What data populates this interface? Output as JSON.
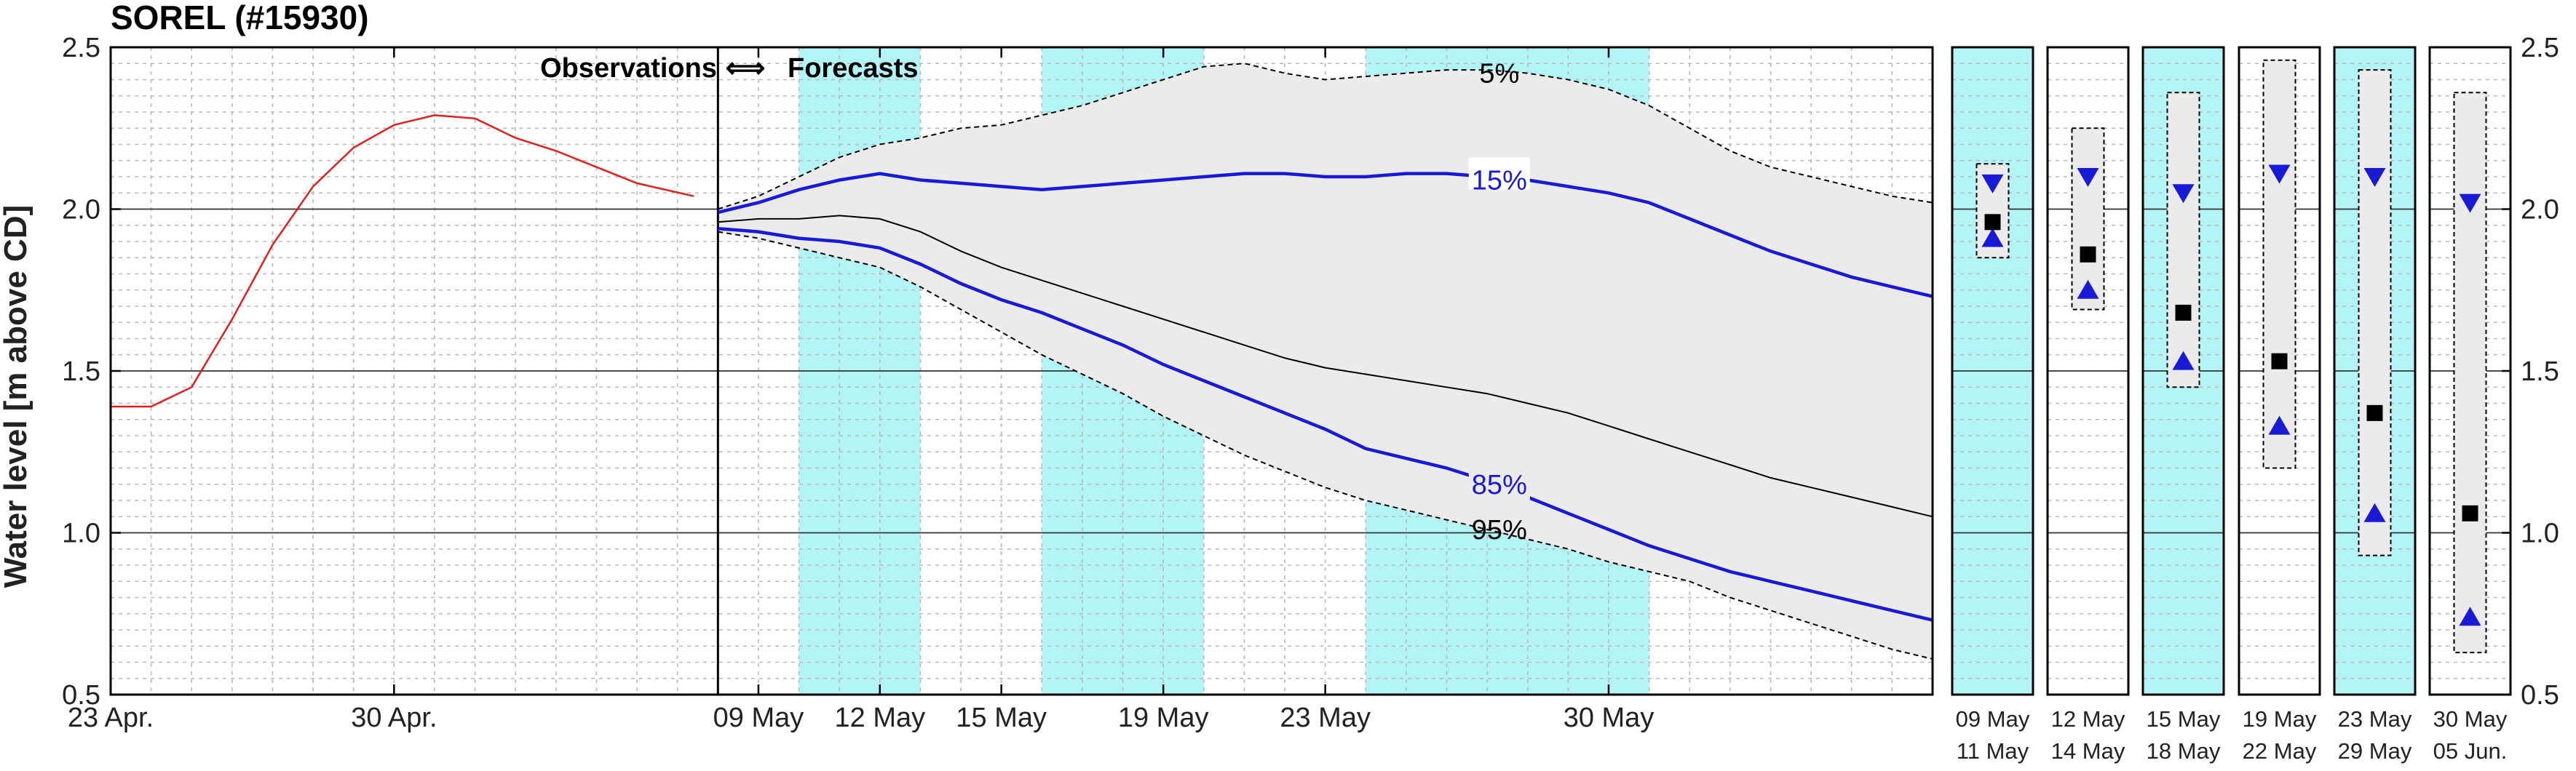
{
  "title": "SOREL (#15930)",
  "colors": {
    "observed": "#e0201b",
    "median": "#000000",
    "percentile": "#1a1ad6",
    "band_fill": "#ebebeb",
    "highlight": "#b3f5f7"
  },
  "chart_data": {
    "type": "line",
    "title": "SOREL (#15930)",
    "ylabel": "Water level [m above CD]",
    "ylim": [
      0.5,
      2.5
    ],
    "yticks": [
      "0.5",
      "1.0",
      "1.5",
      "2.0",
      "2.5"
    ],
    "grid": true,
    "annotation": {
      "observations": "Observations",
      "arrow": "⟺",
      "forecasts": "Forecasts"
    },
    "xticks": [
      {
        "x": 0,
        "label": "23 Apr."
      },
      {
        "x": 7,
        "label": "30 Apr."
      },
      {
        "x": 16,
        "label": "09 May"
      },
      {
        "x": 19,
        "label": "12 May"
      },
      {
        "x": 22,
        "label": "15 May"
      },
      {
        "x": 26,
        "label": "19 May"
      },
      {
        "x": 30,
        "label": "23 May"
      },
      {
        "x": 37,
        "label": "30 May"
      }
    ],
    "highlight_periods": [
      [
        17,
        20
      ],
      [
        23,
        27
      ],
      [
        31,
        38
      ]
    ],
    "observed": {
      "name": "Observations",
      "x": [
        0,
        1,
        2,
        3,
        4,
        5,
        6,
        7,
        8,
        9,
        10,
        11,
        12,
        13,
        14.4
      ],
      "y": [
        1.39,
        1.39,
        1.45,
        1.66,
        1.89,
        2.07,
        2.19,
        2.26,
        2.29,
        2.28,
        2.22,
        2.18,
        2.13,
        2.08,
        2.04
      ]
    },
    "forecast_x": [
      15,
      16,
      17,
      18,
      19,
      20,
      21,
      22,
      23,
      24,
      25,
      26,
      27,
      28,
      29,
      30,
      31,
      32,
      33,
      34,
      35,
      36,
      37,
      38,
      39,
      40,
      41,
      42,
      43,
      44,
      45
    ],
    "series": [
      {
        "name": "5%",
        "values": [
          2.0,
          2.04,
          2.1,
          2.16,
          2.2,
          2.22,
          2.25,
          2.26,
          2.29,
          2.32,
          2.36,
          2.4,
          2.44,
          2.45,
          2.42,
          2.4,
          2.41,
          2.42,
          2.43,
          2.43,
          2.42,
          2.4,
          2.37,
          2.32,
          2.25,
          2.18,
          2.13,
          2.1,
          2.07,
          2.04,
          2.02
        ]
      },
      {
        "name": "15%",
        "values": [
          1.99,
          2.02,
          2.06,
          2.09,
          2.11,
          2.09,
          2.08,
          2.07,
          2.06,
          2.07,
          2.08,
          2.09,
          2.1,
          2.11,
          2.11,
          2.1,
          2.1,
          2.11,
          2.11,
          2.1,
          2.09,
          2.07,
          2.05,
          2.02,
          1.97,
          1.92,
          1.87,
          1.83,
          1.79,
          1.76,
          1.73
        ]
      },
      {
        "name": "median",
        "values": [
          1.96,
          1.97,
          1.97,
          1.98,
          1.97,
          1.93,
          1.87,
          1.82,
          1.78,
          1.74,
          1.7,
          1.66,
          1.62,
          1.58,
          1.54,
          1.51,
          1.49,
          1.47,
          1.45,
          1.43,
          1.4,
          1.37,
          1.33,
          1.29,
          1.25,
          1.21,
          1.17,
          1.14,
          1.11,
          1.08,
          1.05
        ]
      },
      {
        "name": "85%",
        "values": [
          1.94,
          1.93,
          1.91,
          1.9,
          1.88,
          1.83,
          1.77,
          1.72,
          1.68,
          1.63,
          1.58,
          1.52,
          1.47,
          1.42,
          1.37,
          1.32,
          1.26,
          1.23,
          1.2,
          1.16,
          1.11,
          1.06,
          1.01,
          0.96,
          0.92,
          0.88,
          0.85,
          0.82,
          0.79,
          0.76,
          0.73
        ]
      },
      {
        "name": "95%",
        "values": [
          1.93,
          1.91,
          1.88,
          1.85,
          1.82,
          1.76,
          1.69,
          1.62,
          1.55,
          1.49,
          1.43,
          1.36,
          1.3,
          1.24,
          1.19,
          1.14,
          1.1,
          1.07,
          1.04,
          1.01,
          0.98,
          0.95,
          0.91,
          0.88,
          0.85,
          0.8,
          0.76,
          0.72,
          0.68,
          0.64,
          0.61
        ]
      }
    ],
    "percentile_labels": {
      "p5": "5%",
      "p15": "15%",
      "p85": "85%",
      "p95": "95%"
    },
    "periods": [
      {
        "label1": "09 May",
        "label2": "11 May",
        "highlight": true,
        "upper": 2.14,
        "lower": 1.85,
        "up_tri": 2.08,
        "median": 1.96,
        "down_tri": 1.91
      },
      {
        "label1": "12 May",
        "label2": "14 May",
        "highlight": false,
        "upper": 2.25,
        "lower": 1.69,
        "up_tri": 2.1,
        "median": 1.86,
        "down_tri": 1.75
      },
      {
        "label1": "15 May",
        "label2": "18 May",
        "highlight": true,
        "upper": 2.36,
        "lower": 1.45,
        "up_tri": 2.05,
        "median": 1.68,
        "down_tri": 1.53
      },
      {
        "label1": "19 May",
        "label2": "22 May",
        "highlight": false,
        "upper": 2.46,
        "lower": 1.2,
        "up_tri": 2.11,
        "median": 1.53,
        "down_tri": 1.33
      },
      {
        "label1": "23 May",
        "label2": "29 May",
        "highlight": true,
        "upper": 2.43,
        "lower": 0.93,
        "up_tri": 2.1,
        "median": 1.37,
        "down_tri": 1.06
      },
      {
        "label1": "30 May",
        "label2": "05 Jun.",
        "highlight": false,
        "upper": 2.36,
        "lower": 0.63,
        "up_tri": 2.02,
        "median": 1.06,
        "down_tri": 0.74
      }
    ]
  }
}
